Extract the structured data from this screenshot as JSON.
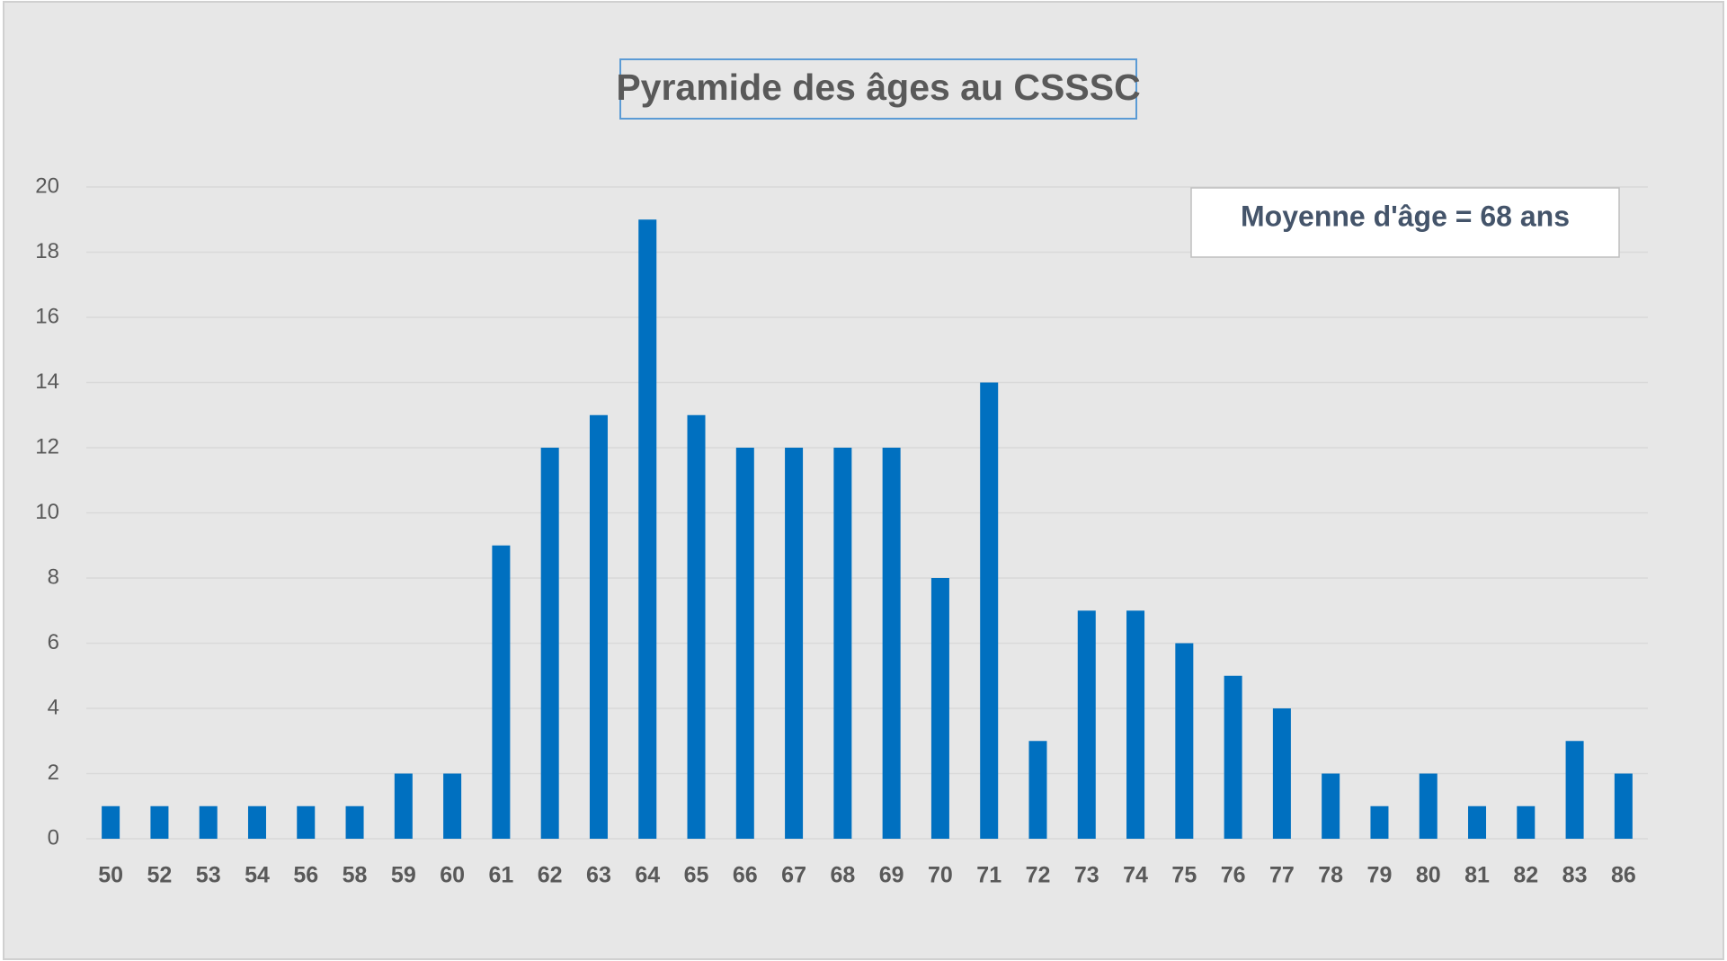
{
  "chart_data": {
    "type": "bar",
    "title": "Pyramide des âges au CSSSC",
    "annotation": "Moyenne d'âge = 68 ans",
    "categories": [
      "50",
      "52",
      "53",
      "54",
      "56",
      "58",
      "59",
      "60",
      "61",
      "62",
      "63",
      "64",
      "65",
      "66",
      "67",
      "68",
      "69",
      "70",
      "71",
      "72",
      "73",
      "74",
      "75",
      "76",
      "77",
      "78",
      "79",
      "80",
      "81",
      "82",
      "83",
      "86"
    ],
    "values": [
      1,
      1,
      1,
      1,
      1,
      1,
      2,
      2,
      9,
      12,
      13,
      19,
      13,
      12,
      12,
      12,
      12,
      8,
      14,
      3,
      7,
      7,
      6,
      5,
      4,
      2,
      1,
      2,
      1,
      1,
      3,
      2
    ],
    "color": "#0070c0",
    "ylim": [
      0,
      20
    ],
    "yticks": [
      0,
      2,
      4,
      6,
      8,
      10,
      12,
      14,
      16,
      18,
      20
    ],
    "grid": true
  }
}
